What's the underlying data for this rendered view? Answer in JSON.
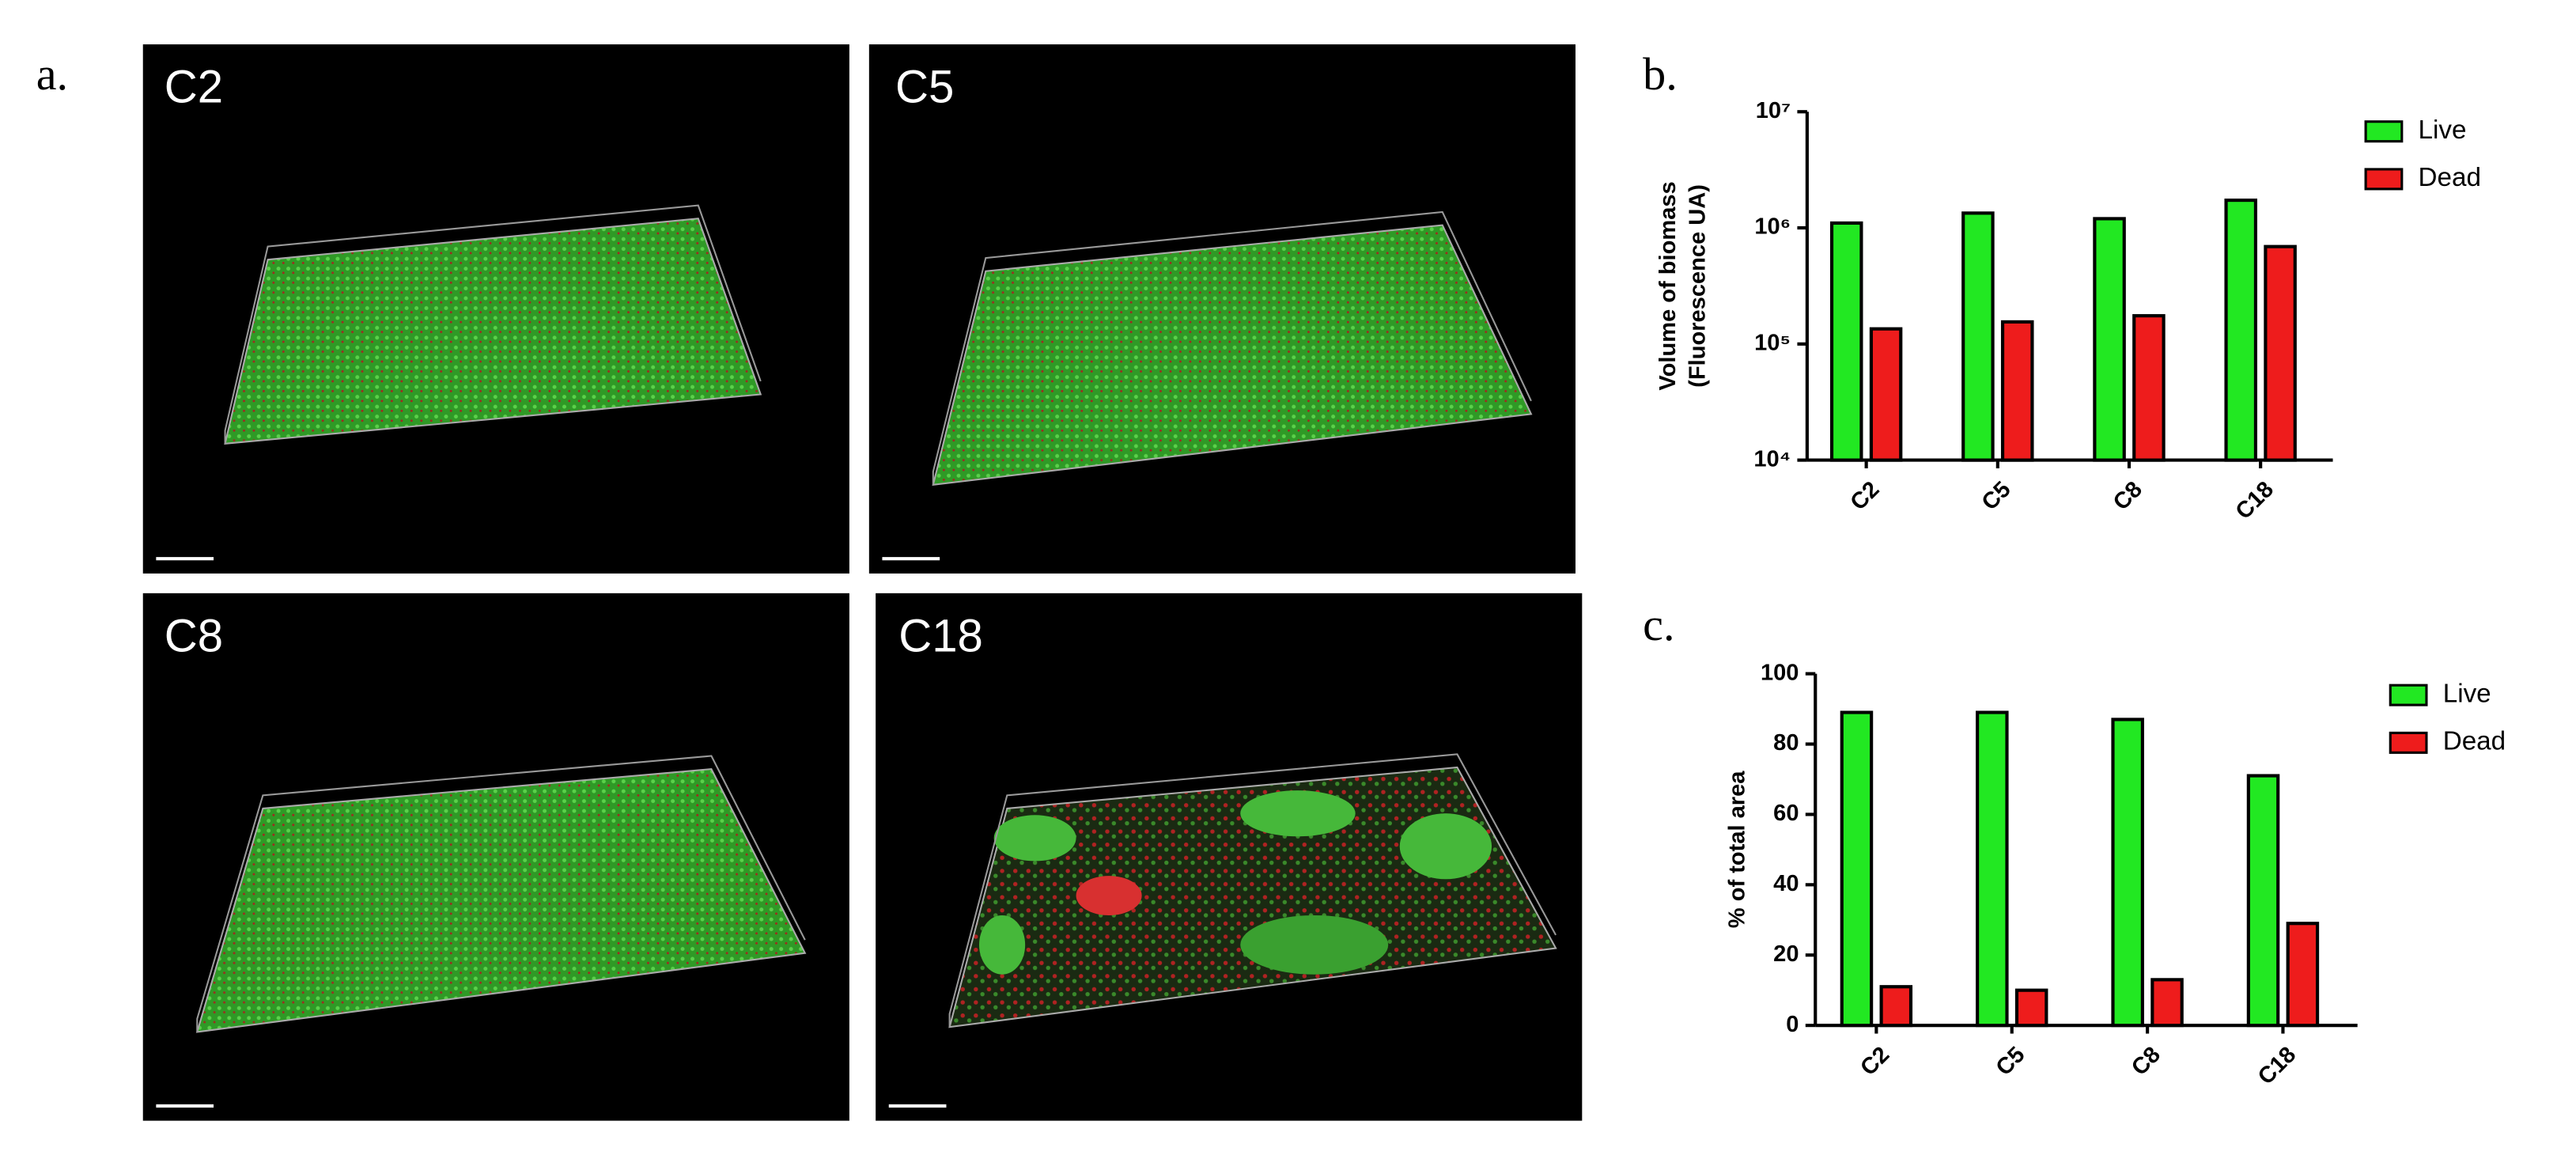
{
  "panel_a": {
    "label": "a.",
    "images": [
      "C2",
      "C5",
      "C8",
      "C18"
    ]
  },
  "chart_data": [
    {
      "type": "bar",
      "panel_label": "b.",
      "ylabel": [
        "Volume of biomass",
        "(Fluorescence UA)"
      ],
      "categories": [
        "C2",
        "C5",
        "C8",
        "C18"
      ],
      "series": [
        {
          "name": "Live",
          "color": "#22e822",
          "values": [
            1100000,
            1340000,
            1200000,
            1730000
          ]
        },
        {
          "name": "Dead",
          "color": "#ee1c1c",
          "values": [
            135000,
            155000,
            175000,
            690000
          ]
        }
      ],
      "ylim": [
        10000,
        10000000
      ],
      "log_scale": true,
      "yticks": [
        {
          "value": 10000,
          "label": "10⁴"
        },
        {
          "value": 100000,
          "label": "10⁵"
        },
        {
          "value": 1000000,
          "label": "10⁶"
        },
        {
          "value": 10000000,
          "label": "10⁷"
        }
      ],
      "legend": "right"
    },
    {
      "type": "bar",
      "panel_label": "c.",
      "ylabel": [
        "% of total area"
      ],
      "categories": [
        "C2",
        "C5",
        "C8",
        "C18"
      ],
      "series": [
        {
          "name": "Live",
          "color": "#22e822",
          "values": [
            89,
            89,
            87,
            71
          ]
        },
        {
          "name": "Dead",
          "color": "#ee1c1c",
          "values": [
            11,
            10,
            13,
            29
          ]
        }
      ],
      "ylim": [
        0,
        100
      ],
      "log_scale": false,
      "yticks": [
        0,
        20,
        40,
        60,
        80,
        100
      ],
      "legend": "right"
    }
  ]
}
